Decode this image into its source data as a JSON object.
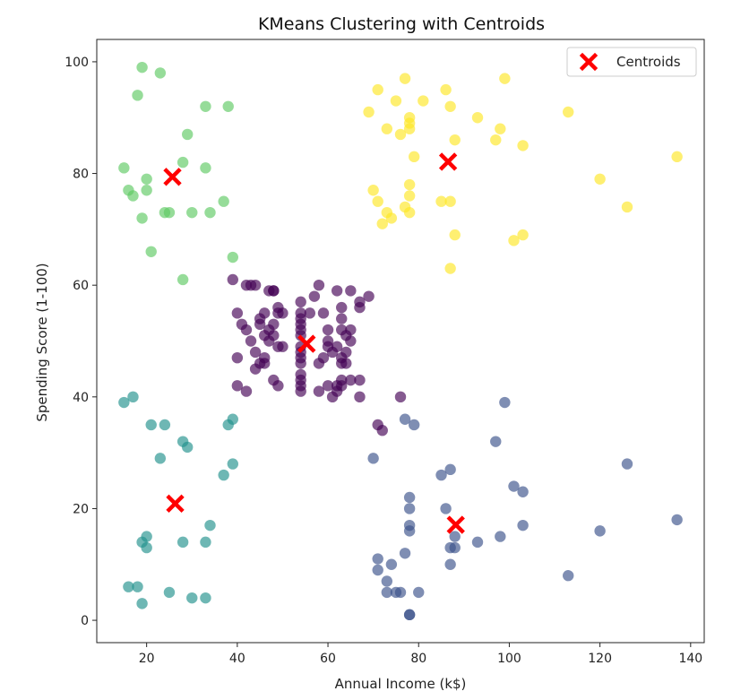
{
  "chart_data": {
    "type": "scatter",
    "title": "KMeans Clustering with Centroids",
    "xlabel": "Annual Income (k$)",
    "ylabel": "Spending Score (1-100)",
    "xlim": [
      9,
      143
    ],
    "ylim": [
      -4,
      104
    ],
    "x_ticks": [
      20,
      40,
      60,
      80,
      100,
      120,
      140
    ],
    "y_ticks": [
      0,
      20,
      40,
      60,
      80,
      100
    ],
    "grid": false,
    "legend": {
      "position": "top-right",
      "entries": [
        "Centroids"
      ]
    },
    "colors": {
      "cluster_0": "#440154",
      "cluster_1": "#3b528b",
      "cluster_2": "#21918c",
      "cluster_3": "#5ec962",
      "cluster_4": "#fde725",
      "centroid": "#ff0000",
      "axes": "#222222"
    },
    "series": [
      {
        "name": "cluster_0",
        "points": [
          [
            39,
            61
          ],
          [
            42,
            60
          ],
          [
            43,
            60
          ],
          [
            44,
            60
          ],
          [
            45,
            53
          ],
          [
            45,
            54
          ],
          [
            46,
            55
          ],
          [
            46,
            51
          ],
          [
            47,
            52
          ],
          [
            47,
            59
          ],
          [
            48,
            59
          ],
          [
            48,
            53
          ],
          [
            48,
            59
          ],
          [
            49,
            55
          ],
          [
            49,
            56
          ],
          [
            50,
            55
          ],
          [
            40,
            55
          ],
          [
            41,
            53
          ],
          [
            42,
            52
          ],
          [
            43,
            50
          ],
          [
            44,
            48
          ],
          [
            44,
            45
          ],
          [
            45,
            46
          ],
          [
            46,
            47
          ],
          [
            47,
            50
          ],
          [
            48,
            51
          ],
          [
            49,
            49
          ],
          [
            50,
            49
          ],
          [
            40,
            47
          ],
          [
            40,
            42
          ],
          [
            42,
            41
          ],
          [
            46,
            46
          ],
          [
            48,
            43
          ],
          [
            49,
            42
          ],
          [
            54,
            41
          ],
          [
            54,
            42
          ],
          [
            54,
            43
          ],
          [
            54,
            44
          ],
          [
            54,
            46
          ],
          [
            54,
            47
          ],
          [
            54,
            48
          ],
          [
            54,
            49
          ],
          [
            54,
            51
          ],
          [
            54,
            52
          ],
          [
            54,
            53
          ],
          [
            54,
            54
          ],
          [
            54,
            55
          ],
          [
            54,
            57
          ],
          [
            56,
            55
          ],
          [
            57,
            58
          ],
          [
            58,
            60
          ],
          [
            59,
            55
          ],
          [
            58,
            46
          ],
          [
            58,
            41
          ],
          [
            59,
            47
          ],
          [
            60,
            49
          ],
          [
            60,
            50
          ],
          [
            60,
            52
          ],
          [
            60,
            42
          ],
          [
            61,
            40
          ],
          [
            61,
            48
          ],
          [
            62,
            41
          ],
          [
            62,
            42
          ],
          [
            62,
            49
          ],
          [
            62,
            59
          ],
          [
            63,
            52
          ],
          [
            63,
            56
          ],
          [
            63,
            54
          ],
          [
            63,
            47
          ],
          [
            63,
            46
          ],
          [
            63,
            43
          ],
          [
            63,
            42
          ],
          [
            64,
            46
          ],
          [
            64,
            48
          ],
          [
            64,
            51
          ],
          [
            65,
            43
          ],
          [
            65,
            50
          ],
          [
            65,
            52
          ],
          [
            65,
            59
          ],
          [
            67,
            56
          ],
          [
            67,
            57
          ],
          [
            67,
            43
          ],
          [
            67,
            40
          ],
          [
            69,
            58
          ],
          [
            71,
            35
          ],
          [
            72,
            34
          ],
          [
            76,
            40
          ]
        ]
      },
      {
        "name": "cluster_1",
        "points": [
          [
            70,
            29
          ],
          [
            71,
            11
          ],
          [
            71,
            9
          ],
          [
            73,
            5
          ],
          [
            73,
            7
          ],
          [
            74,
            10
          ],
          [
            75,
            5
          ],
          [
            76,
            5
          ],
          [
            77,
            12
          ],
          [
            77,
            36
          ],
          [
            78,
            22
          ],
          [
            78,
            17
          ],
          [
            78,
            16
          ],
          [
            78,
            20
          ],
          [
            78,
            1
          ],
          [
            78,
            1
          ],
          [
            79,
            35
          ],
          [
            80,
            5
          ],
          [
            85,
            26
          ],
          [
            86,
            20
          ],
          [
            87,
            27
          ],
          [
            87,
            13
          ],
          [
            87,
            10
          ],
          [
            88,
            13
          ],
          [
            88,
            15
          ],
          [
            93,
            14
          ],
          [
            97,
            32
          ],
          [
            98,
            15
          ],
          [
            99,
            39
          ],
          [
            101,
            24
          ],
          [
            103,
            23
          ],
          [
            103,
            17
          ],
          [
            113,
            8
          ],
          [
            120,
            16
          ],
          [
            126,
            28
          ],
          [
            137,
            18
          ]
        ]
      },
      {
        "name": "cluster_2",
        "points": [
          [
            15,
            39
          ],
          [
            16,
            6
          ],
          [
            17,
            40
          ],
          [
            18,
            6
          ],
          [
            19,
            3
          ],
          [
            19,
            14
          ],
          [
            20,
            15
          ],
          [
            20,
            13
          ],
          [
            21,
            35
          ],
          [
            23,
            29
          ],
          [
            24,
            35
          ],
          [
            25,
            5
          ],
          [
            28,
            14
          ],
          [
            28,
            32
          ],
          [
            29,
            31
          ],
          [
            30,
            4
          ],
          [
            33,
            4
          ],
          [
            33,
            14
          ],
          [
            34,
            17
          ],
          [
            37,
            26
          ],
          [
            38,
            35
          ],
          [
            39,
            36
          ],
          [
            39,
            28
          ]
        ]
      },
      {
        "name": "cluster_3",
        "points": [
          [
            15,
            81
          ],
          [
            16,
            77
          ],
          [
            17,
            76
          ],
          [
            18,
            94
          ],
          [
            19,
            72
          ],
          [
            19,
            99
          ],
          [
            20,
            77
          ],
          [
            20,
            79
          ],
          [
            21,
            66
          ],
          [
            23,
            98
          ],
          [
            24,
            73
          ],
          [
            25,
            73
          ],
          [
            28,
            82
          ],
          [
            28,
            61
          ],
          [
            29,
            87
          ],
          [
            30,
            73
          ],
          [
            33,
            92
          ],
          [
            33,
            81
          ],
          [
            34,
            73
          ],
          [
            37,
            75
          ],
          [
            38,
            92
          ],
          [
            39,
            65
          ]
        ]
      },
      {
        "name": "cluster_4",
        "points": [
          [
            69,
            91
          ],
          [
            70,
            77
          ],
          [
            71,
            95
          ],
          [
            71,
            75
          ],
          [
            72,
            71
          ],
          [
            73,
            88
          ],
          [
            73,
            73
          ],
          [
            74,
            72
          ],
          [
            75,
            93
          ],
          [
            76,
            87
          ],
          [
            77,
            97
          ],
          [
            77,
            74
          ],
          [
            78,
            90
          ],
          [
            78,
            88
          ],
          [
            78,
            89
          ],
          [
            78,
            73
          ],
          [
            78,
            76
          ],
          [
            78,
            78
          ],
          [
            79,
            83
          ],
          [
            81,
            93
          ],
          [
            85,
            75
          ],
          [
            86,
            95
          ],
          [
            87,
            63
          ],
          [
            87,
            75
          ],
          [
            87,
            92
          ],
          [
            88,
            86
          ],
          [
            88,
            69
          ],
          [
            93,
            90
          ],
          [
            97,
            86
          ],
          [
            98,
            88
          ],
          [
            99,
            97
          ],
          [
            101,
            68
          ],
          [
            103,
            85
          ],
          [
            103,
            69
          ],
          [
            113,
            91
          ],
          [
            120,
            79
          ],
          [
            126,
            74
          ],
          [
            137,
            83
          ]
        ]
      }
    ],
    "centroids": {
      "name": "Centroids",
      "points": [
        [
          55.3,
          49.5
        ],
        [
          86.5,
          82.1
        ],
        [
          88.2,
          17.1
        ],
        [
          25.7,
          79.4
        ],
        [
          26.3,
          20.9
        ]
      ]
    }
  }
}
